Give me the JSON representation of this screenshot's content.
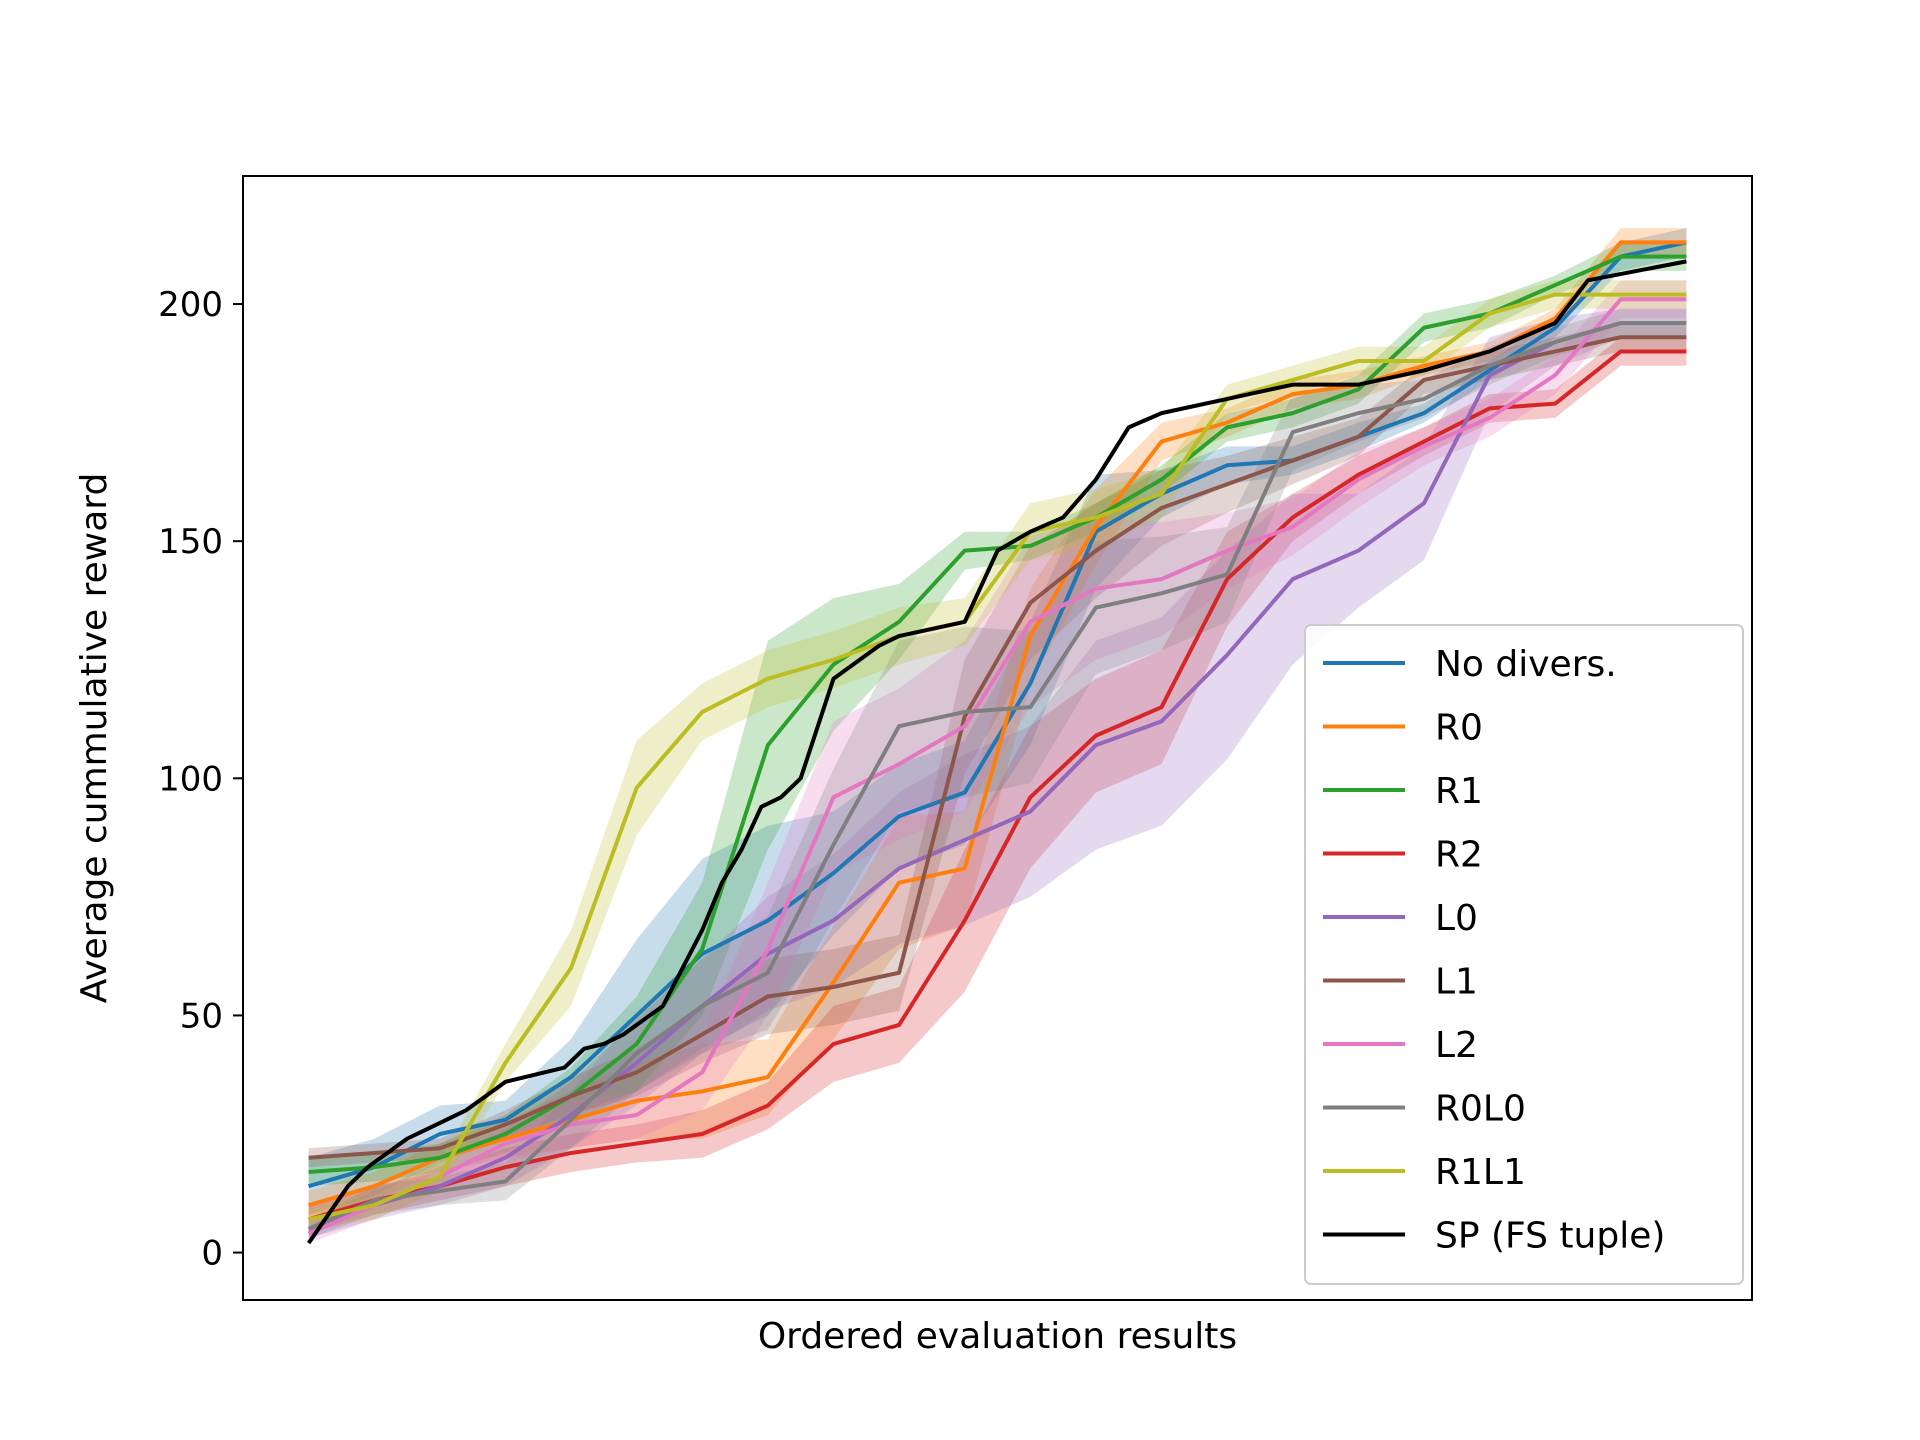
{
  "chart_data": {
    "type": "line",
    "title": "",
    "xlabel": "Ordered evaluation results",
    "ylabel": "Average cummulative reward",
    "xlim": [
      -1.0,
      22.0
    ],
    "ylim": [
      -10,
      227
    ],
    "yticks": [
      0,
      50,
      100,
      150,
      200
    ],
    "grid": false,
    "legend_position": "lower-right",
    "x": [
      0,
      1,
      2,
      3,
      4,
      5,
      6,
      7,
      8,
      9,
      10,
      11,
      12,
      13,
      14,
      15,
      16,
      17,
      18,
      19,
      20,
      21
    ],
    "series": [
      {
        "name": "No divers.",
        "color": "#1f77b4",
        "values": [
          14,
          18,
          25,
          28,
          37,
          50,
          63,
          70,
          80,
          92,
          97,
          120,
          152,
          160,
          166,
          167,
          172,
          177,
          186,
          195,
          210,
          213
        ],
        "band": [
          6,
          6,
          6,
          4,
          8,
          16,
          20,
          20,
          13,
          11,
          11,
          13,
          12,
          5,
          4,
          3,
          3,
          2,
          2,
          2,
          3,
          3
        ]
      },
      {
        "name": "R0",
        "color": "#ff7f0e",
        "values": [
          10,
          14,
          20,
          24,
          28,
          32,
          34,
          37,
          57,
          78,
          81,
          130,
          153,
          171,
          175,
          181,
          183,
          187,
          190,
          197,
          213,
          213
        ],
        "band": [
          3,
          3,
          3,
          4,
          6,
          8,
          10,
          8,
          12,
          14,
          12,
          10,
          8,
          4,
          3,
          3,
          3,
          2,
          2,
          2,
          3,
          3
        ]
      },
      {
        "name": "R1",
        "color": "#2ca02c",
        "values": [
          17,
          18,
          20,
          25,
          33,
          44,
          64,
          107,
          124,
          133,
          148,
          149,
          155,
          163,
          174,
          177,
          182,
          195,
          198,
          204,
          210,
          210
        ],
        "band": [
          3,
          3,
          3,
          4,
          6,
          10,
          14,
          22,
          14,
          8,
          4,
          3,
          3,
          3,
          3,
          3,
          3,
          3,
          3,
          2,
          3,
          3
        ]
      },
      {
        "name": "R2",
        "color": "#d62728",
        "values": [
          7,
          11,
          14,
          18,
          21,
          23,
          25,
          31,
          44,
          48,
          70,
          96,
          109,
          115,
          142,
          155,
          164,
          171,
          178,
          179,
          190,
          190
        ],
        "band": [
          3,
          3,
          3,
          4,
          4,
          4,
          5,
          5,
          8,
          8,
          15,
          15,
          12,
          12,
          10,
          5,
          4,
          3,
          3,
          3,
          3,
          3
        ]
      },
      {
        "name": "L0",
        "color": "#9467bd",
        "values": [
          5,
          10,
          14,
          20,
          29,
          40,
          52,
          63,
          70,
          81,
          87,
          93,
          107,
          112,
          126,
          142,
          148,
          158,
          185,
          192,
          196,
          196
        ],
        "band": [
          2,
          3,
          4,
          6,
          7,
          9,
          10,
          12,
          14,
          16,
          18,
          18,
          22,
          22,
          22,
          18,
          12,
          12,
          8,
          5,
          3,
          3
        ]
      },
      {
        "name": "L1",
        "color": "#8c564b",
        "values": [
          20,
          21,
          22,
          27,
          33,
          38,
          46,
          54,
          56,
          59,
          113,
          137,
          148,
          157,
          162,
          167,
          172,
          184,
          187,
          190,
          193,
          193
        ],
        "band": [
          2,
          2,
          2,
          3,
          4,
          5,
          6,
          8,
          8,
          8,
          12,
          12,
          10,
          8,
          6,
          5,
          4,
          3,
          3,
          3,
          3,
          3
        ]
      },
      {
        "name": "L2",
        "color": "#e377c2",
        "values": [
          4,
          10,
          16,
          23,
          27,
          29,
          38,
          64,
          96,
          103,
          111,
          133,
          140,
          142,
          148,
          153,
          163,
          170,
          176,
          185,
          201,
          201
        ],
        "band": [
          2,
          3,
          3,
          4,
          5,
          5,
          8,
          14,
          16,
          16,
          18,
          18,
          15,
          12,
          8,
          6,
          6,
          4,
          4,
          4,
          4,
          4
        ]
      },
      {
        "name": "R0L0",
        "color": "#7f7f7f",
        "values": [
          5,
          11,
          13,
          15,
          28,
          42,
          52,
          59,
          86,
          111,
          114,
          115,
          136,
          139,
          143,
          173,
          177,
          180,
          187,
          192,
          196,
          196
        ],
        "band": [
          2,
          3,
          3,
          4,
          6,
          8,
          10,
          12,
          16,
          18,
          18,
          16,
          14,
          12,
          10,
          8,
          6,
          4,
          4,
          3,
          3,
          3
        ]
      },
      {
        "name": "R1L1",
        "color": "#bcbd22",
        "values": [
          7,
          10,
          16,
          40,
          60,
          98,
          114,
          121,
          125,
          130,
          133,
          152,
          155,
          160,
          180,
          184,
          188,
          188,
          198,
          202,
          202,
          202
        ],
        "band": [
          2,
          3,
          3,
          4,
          8,
          10,
          6,
          6,
          6,
          6,
          5,
          6,
          6,
          5,
          3,
          3,
          3,
          3,
          3,
          3,
          3,
          3
        ]
      },
      {
        "name": "SP (FS tuple)",
        "color": "#000000",
        "values": [
          2,
          8,
          14,
          18,
          21,
          24,
          26,
          28,
          30,
          33,
          36,
          37,
          38,
          39,
          43,
          44,
          46,
          49,
          52,
          60,
          68,
          78,
          85,
          94,
          96,
          100,
          121,
          124,
          128,
          130,
          133,
          148,
          152,
          155,
          163,
          174,
          177,
          180,
          183,
          183,
          186,
          190,
          196,
          205,
          209
        ],
        "x": [
          0.0,
          0.3,
          0.6,
          0.9,
          1.2,
          1.5,
          1.8,
          2.1,
          2.4,
          2.7,
          3.0,
          3.3,
          3.6,
          3.9,
          4.2,
          4.5,
          4.8,
          5.1,
          5.4,
          5.7,
          6.0,
          6.3,
          6.6,
          6.9,
          7.2,
          7.5,
          8.0,
          8.3,
          8.7,
          9.0,
          10.0,
          10.5,
          11.0,
          11.5,
          12.0,
          12.5,
          13.0,
          14.0,
          15.0,
          16.0,
          17.0,
          18.0,
          19.0,
          19.5,
          21.0
        ]
      }
    ]
  }
}
